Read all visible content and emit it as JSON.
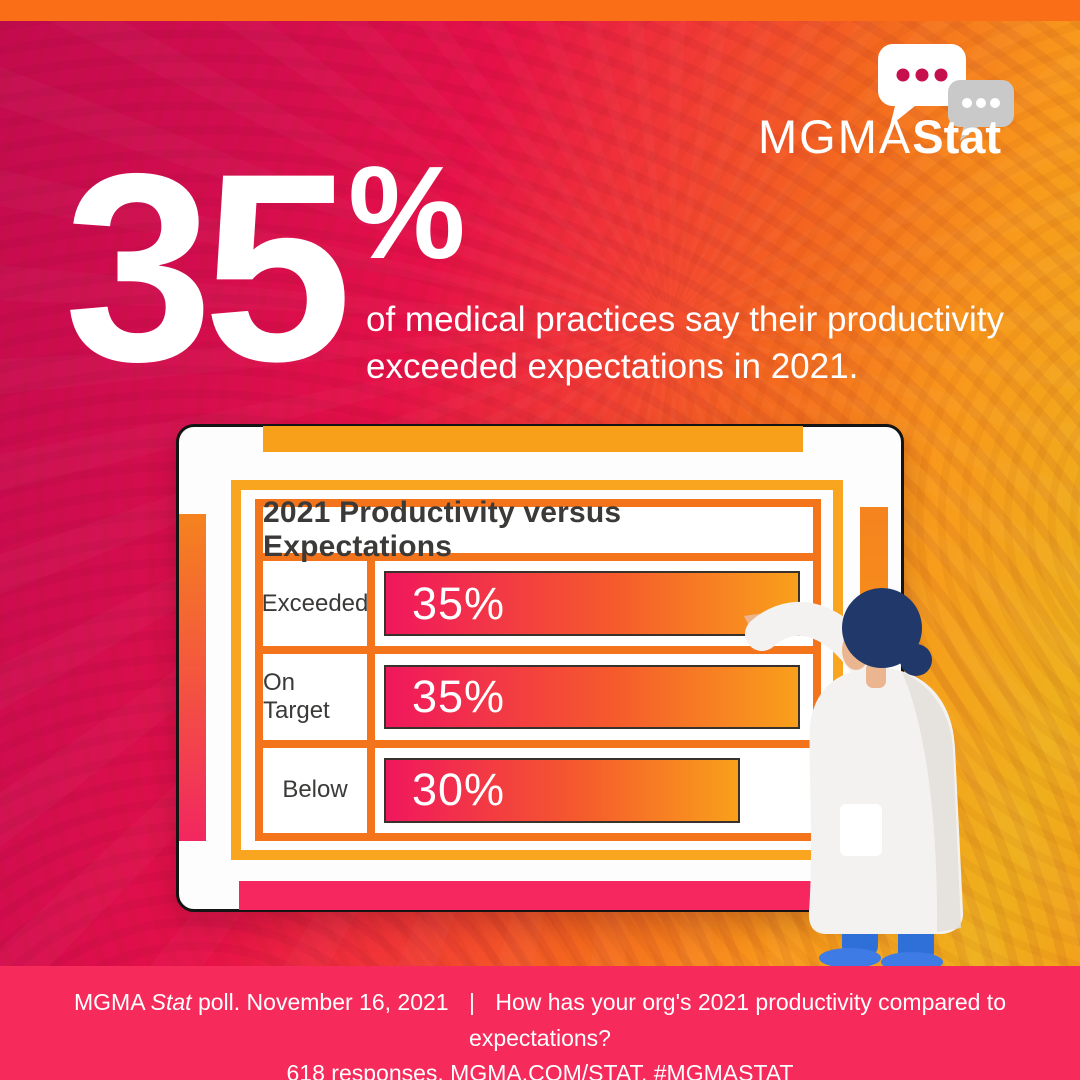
{
  "brand": {
    "logo_mgma": "MGMA",
    "logo_stat": "Stat"
  },
  "headline": {
    "big_number": "35",
    "percent_sign": "%",
    "line1": "of medical practices say their productivity",
    "line2": "exceeded expectations in 2021."
  },
  "chart_data": {
    "type": "bar",
    "orientation": "horizontal",
    "title": "2021 Productivity versus Expectations",
    "categories": [
      "Exceeded",
      "On Target",
      "Below"
    ],
    "values": [
      35,
      35,
      30
    ],
    "value_labels": [
      "35%",
      "35%",
      "30%"
    ],
    "xlim": [
      0,
      35
    ],
    "grid": false,
    "legend": false,
    "bar_gradient": [
      "#F0175D",
      "#F9A01B"
    ]
  },
  "footer": {
    "brand": "MGMA",
    "stat_italic": "Stat",
    "poll_text": "poll. November 16, 2021",
    "divider": "|",
    "question": "How has your org's 2021 productivity compared to expectations?",
    "line2": "618 responses. MGMA.COM/STAT, #MGMASTAT"
  },
  "colors": {
    "top_band": "#FA6E17",
    "background_left": "#C30B4E",
    "background_right": "#F49C1A",
    "footer_bg": "#F62B5C",
    "board_bg": "#FDFDFD",
    "board_border": "#141414",
    "board_top_bar": "#F9A01B",
    "board_bottom_bar": "#F5275E",
    "outer_frame": "#F9A51F",
    "table_frame": "#F4741C",
    "bar_start": "#F0175D",
    "bar_end": "#F9A01B",
    "text_dark": "#3B3A39",
    "text_light": "#FFFFFF"
  }
}
